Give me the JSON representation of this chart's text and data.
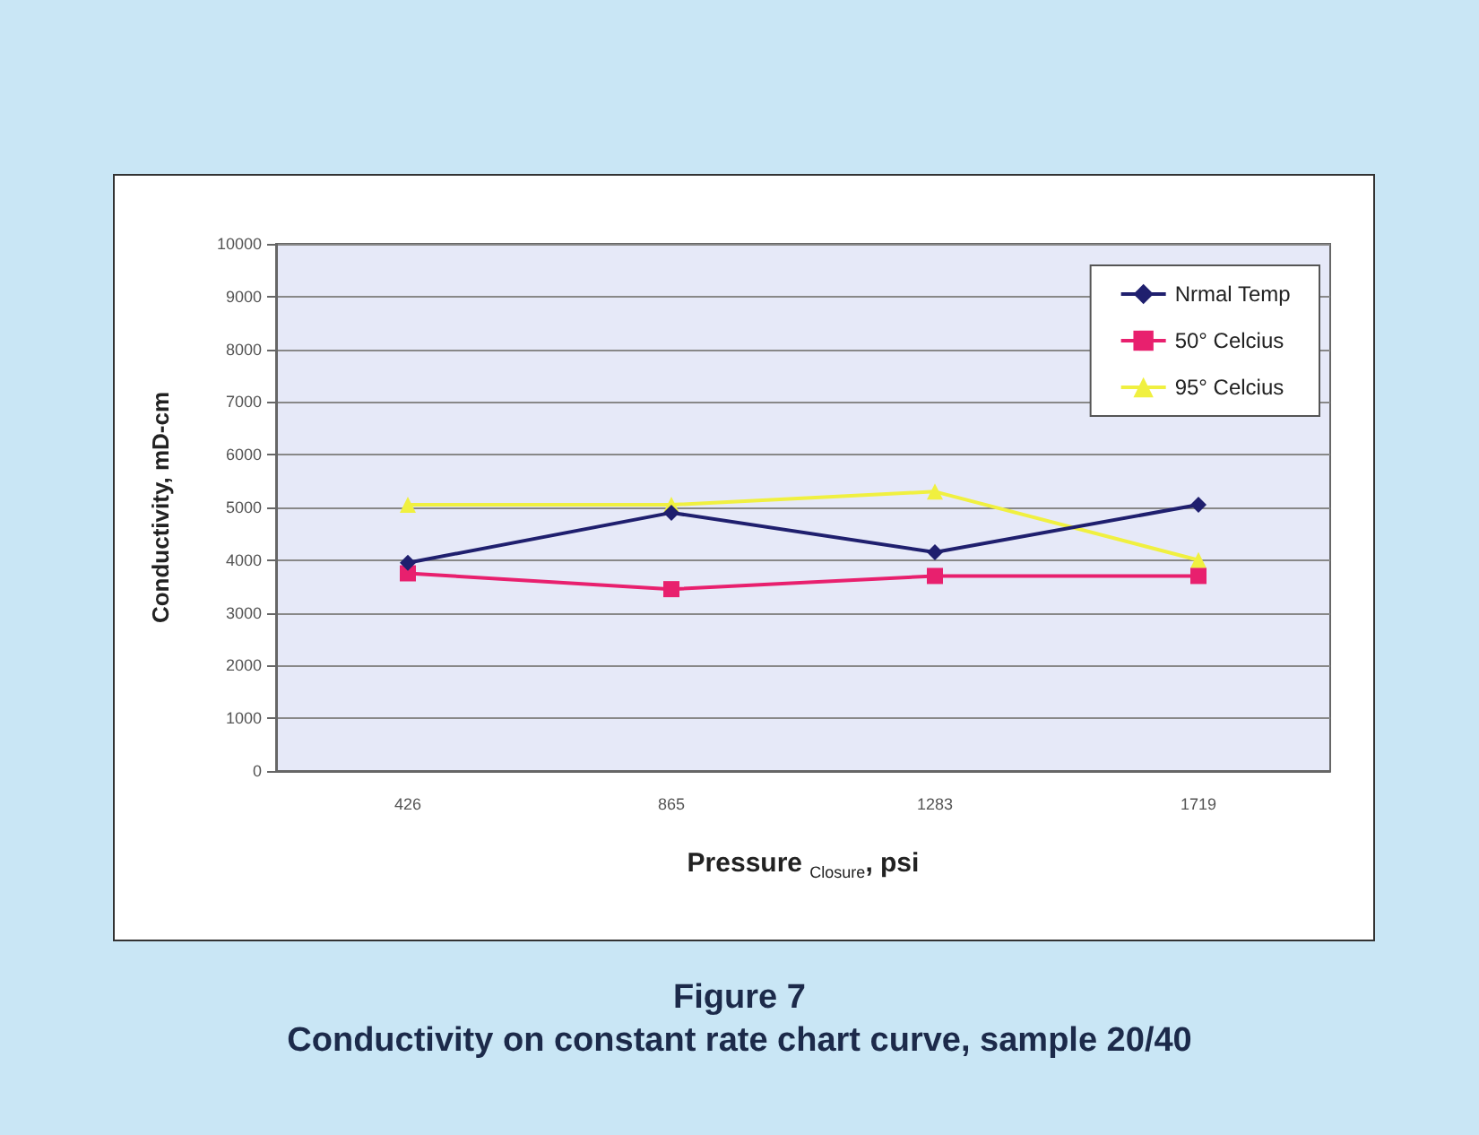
{
  "chart_data": {
    "type": "line",
    "title": "Figure 7",
    "subtitle": "Conductivity on constant rate chart curve, sample 20/40",
    "xlabel": "Pressure $_{Closure}$, psi",
    "ylabel": "Conductivity, mD-cm",
    "categories": [
      "426",
      "865",
      "1283",
      "1719"
    ],
    "series": [
      {
        "name": "Nrmal Temp",
        "color": "#1f1f6e",
        "marker": "diamond",
        "values": [
          3950,
          4900,
          4150,
          5050
        ]
      },
      {
        "name": "50° Celcius",
        "color": "#e8206e",
        "marker": "square",
        "values": [
          3750,
          3450,
          3700,
          3700
        ]
      },
      {
        "name": "95° Celcius",
        "color": "#f0f040",
        "marker": "triangle",
        "values": [
          5050,
          5050,
          5300,
          4000
        ]
      }
    ],
    "ylim": [
      0,
      10000
    ],
    "yticks": [
      0,
      1000,
      2000,
      3000,
      4000,
      5000,
      6000,
      7000,
      8000,
      9000,
      10000
    ],
    "grid": "y",
    "legend": "top right"
  }
}
